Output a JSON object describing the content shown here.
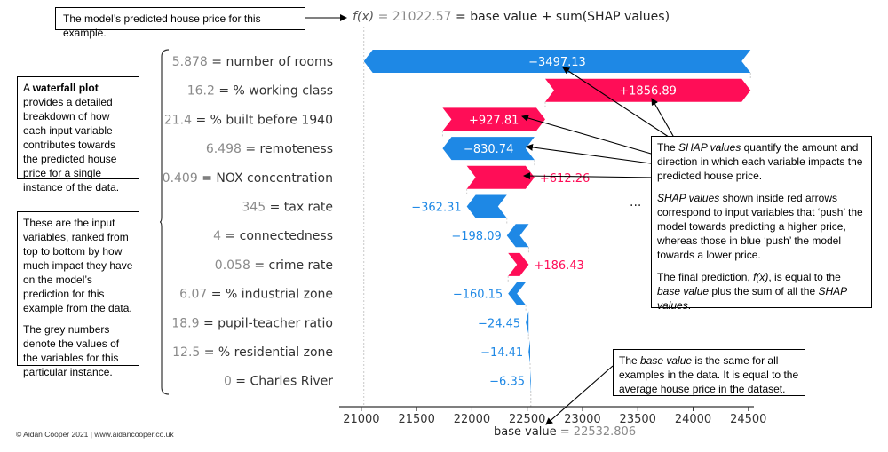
{
  "header_box": "The model’s predicted house price for this example.",
  "fx": {
    "prefix": "f(x)",
    "value": " = 21022.57",
    "suffix": " = base value + sum(SHAP values)"
  },
  "left_box_1": {
    "pre": "A ",
    "bold": "waterfall plot",
    "post": " provides a detailed breakdown of how each input variable contributes towards the predicted house price for a single instance of the data."
  },
  "left_box_2": {
    "p1": "These are the input variables, ranked from top to bottom by how much impact they have on the model’s prediction for this example from the data.",
    "p2": "The grey numbers denote the values of the variables for this particular instance."
  },
  "right_box_1": {
    "p1_pre": "The ",
    "p1_em": "SHAP values",
    "p1_post": " quantify the amount and direction in which each variable impacts the predicted house price.",
    "p2_em": "SHAP values",
    "p2_post": " shown inside red arrows correspond to input variables that ‘push’ the model towards predicting a higher price, whereas those in blue ‘push’ the model towards a lower price.",
    "p3_pre": "The final prediction, ",
    "p3_em1": "f(x)",
    "p3_mid": ", is equal to the ",
    "p3_em2": "base value",
    "p3_mid2": " plus the sum of all the ",
    "p3_em3": "SHAP values",
    "p3_post": "."
  },
  "right_box_2": {
    "pre": "The ",
    "em": "base value",
    "post": " is the same for all examples in the data. It is equal to the average house price in the dataset."
  },
  "ellipsis": "...",
  "footer": "© Aidan Cooper 2021 | www.aidancooper.co.uk",
  "colors": {
    "positive": "#ff0d57",
    "negative": "#1e88e5",
    "grey_text": "#8a8a8a"
  },
  "chart_data": {
    "type": "waterfall",
    "base_value": 22532.806,
    "base_value_label": "base value",
    "base_value_text": " = 22532.806",
    "prediction": 21022.57,
    "xlim": [
      20800,
      24550
    ],
    "xticks": [
      21000,
      21500,
      22000,
      22500,
      23000,
      23500,
      24000,
      24500
    ],
    "features": [
      {
        "value": "5.878",
        "name": "number of rooms",
        "shap": -3497.13,
        "label": "−3497.13"
      },
      {
        "value": "16.2",
        "name": "% working class",
        "shap": 1856.89,
        "label": "+1856.89"
      },
      {
        "value": "21.4",
        "name": "% built before 1940",
        "shap": 927.81,
        "label": "+927.81"
      },
      {
        "value": "6.498",
        "name": "remoteness",
        "shap": -830.74,
        "label": "−830.74"
      },
      {
        "value": "0.409",
        "name": "NOX concentration",
        "shap": 612.26,
        "label": "+612.26"
      },
      {
        "value": "345",
        "name": "tax rate",
        "shap": -362.31,
        "label": "−362.31"
      },
      {
        "value": "4",
        "name": "connectedness",
        "shap": -198.09,
        "label": "−198.09"
      },
      {
        "value": "0.058",
        "name": "crime rate",
        "shap": 186.43,
        "label": "+186.43"
      },
      {
        "value": "6.07",
        "name": "% industrial zone",
        "shap": -160.15,
        "label": "−160.15"
      },
      {
        "value": "18.9",
        "name": "pupil-teacher ratio",
        "shap": -24.45,
        "label": "−24.45"
      },
      {
        "value": "12.5",
        "name": "% residential zone",
        "shap": -14.41,
        "label": "−14.41"
      },
      {
        "value": "0",
        "name": "Charles River",
        "shap": -6.35,
        "label": "−6.35"
      }
    ]
  }
}
